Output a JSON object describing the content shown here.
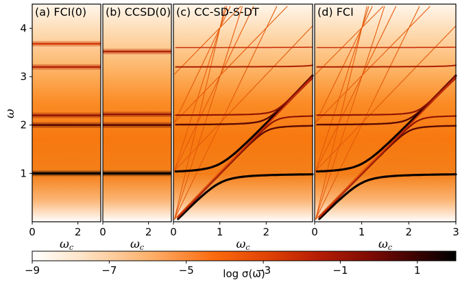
{
  "chart_data": [
    {
      "type": "heatmap",
      "title": "",
      "panel_label": "(a) FCI(0)",
      "xlabel": "ω_c",
      "ylabel": "ω",
      "xlim": [
        0,
        3
      ],
      "ylim": [
        0,
        4.5
      ],
      "xticks": [
        "0",
        "2"
      ],
      "yticks": [
        "1",
        "2",
        "3",
        "4"
      ],
      "peaks": [
        {
          "omega": 1.0,
          "intensity": 1.0
        },
        {
          "omega": 2.0,
          "intensity": -0.5
        },
        {
          "omega": 2.2,
          "intensity": -1.0
        },
        {
          "omega": 3.2,
          "intensity": -2.0
        },
        {
          "omega": 3.68,
          "intensity": -3.0
        }
      ]
    },
    {
      "type": "heatmap",
      "title": "",
      "panel_label": "(b) CCSD(0)",
      "xlabel": "ω_c",
      "ylabel": "",
      "xlim": [
        0,
        3
      ],
      "ylim": [
        0,
        4.5
      ],
      "xticks": [
        "0",
        "2"
      ],
      "peaks": [
        {
          "omega": 1.0,
          "intensity": 1.0
        },
        {
          "omega": 2.0,
          "intensity": -0.5
        },
        {
          "omega": 2.22,
          "intensity": -1.2
        },
        {
          "omega": 3.52,
          "intensity": -2.2
        }
      ]
    },
    {
      "type": "heatmap",
      "title": "",
      "panel_label": "(c) CC-SD-S-DT",
      "xlabel": "ω_c",
      "ylabel": "",
      "xlim": [
        0,
        3
      ],
      "ylim": [
        0,
        4.5
      ],
      "xticks": [
        "0",
        "1",
        "2"
      ]
    },
    {
      "type": "heatmap",
      "title": "",
      "panel_label": "(d) FCI",
      "xlabel": "ω_c",
      "ylabel": "",
      "xlim": [
        0,
        3
      ],
      "ylim": [
        0,
        4.5
      ],
      "xticks": [
        "0",
        "1",
        "2",
        "3"
      ]
    }
  ],
  "colorbar": {
    "label": "log σ(ω)",
    "range": [
      -9,
      2
    ],
    "ticks": [
      "−9",
      "−7",
      "−5",
      "−3",
      "−1",
      "1"
    ],
    "colormap": "gist_heat_r"
  }
}
